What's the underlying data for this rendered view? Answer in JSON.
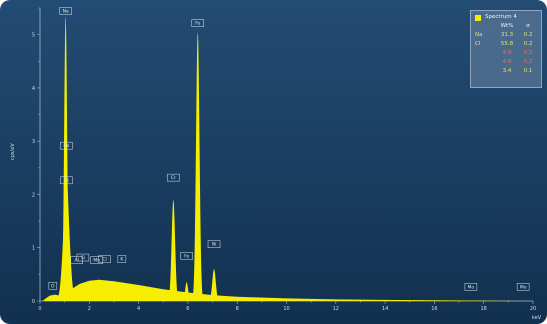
{
  "colors": {
    "background_top": "#234c74",
    "background_bottom": "#12304f",
    "spectrum_fill": "#f5ee00",
    "axis": "#9fb7cf",
    "text": "#cfdbe7",
    "label_box": "#d8e6f2",
    "legend_alt_text": "#e07070"
  },
  "chart_data": {
    "type": "area",
    "title": "",
    "xlabel": "keV",
    "ylabel": "cps/eV",
    "xlim": [
      0,
      20
    ],
    "ylim": [
      0,
      5.5
    ],
    "x_ticks": [
      "0",
      "2",
      "4",
      "6",
      "8",
      "10",
      "12",
      "14",
      "16",
      "18",
      "20"
    ],
    "y_ticks": [
      "0",
      "1",
      "2",
      "3",
      "4",
      "5"
    ],
    "x_tick_step": 1,
    "y_tick_step": 0.5,
    "legend": {
      "placement": "top-right",
      "series_name": "Spectrum 4",
      "columns": [
        "",
        "Wt%",
        "σ"
      ],
      "rows": [
        {
          "element": "Na",
          "wt": "31.3",
          "sigma": "0.2",
          "alt": false
        },
        {
          "element": "Cl",
          "wt": "55.8",
          "sigma": "0.2",
          "alt": false
        },
        {
          "element": "",
          "wt": "4.9",
          "sigma": "0.2",
          "alt": true
        },
        {
          "element": "",
          "wt": "4.6",
          "sigma": "0.2",
          "alt": true
        },
        {
          "element": "",
          "wt": "3.4",
          "sigma": "0.1",
          "alt": false
        }
      ]
    },
    "background": [
      [
        0.15,
        0.02
      ],
      [
        0.4,
        0.1
      ],
      [
        0.6,
        0.12
      ],
      [
        0.8,
        0.1
      ],
      [
        1.2,
        0.2
      ],
      [
        1.6,
        0.32
      ],
      [
        2.0,
        0.38
      ],
      [
        2.4,
        0.4
      ],
      [
        3.0,
        0.37
      ],
      [
        4.0,
        0.3
      ],
      [
        5.0,
        0.22
      ],
      [
        6.0,
        0.16
      ],
      [
        7.0,
        0.11
      ],
      [
        8.0,
        0.08
      ],
      [
        10.0,
        0.05
      ],
      [
        12.0,
        0.03
      ],
      [
        14.0,
        0.02
      ],
      [
        17.0,
        0.01
      ],
      [
        20.0,
        0.0
      ]
    ],
    "peaks": [
      {
        "label": "O",
        "energy": 0.52,
        "height": 0.1,
        "width": 0.05,
        "label_value": 0.22
      },
      {
        "label": "Na",
        "energy": 1.04,
        "height": 5.35,
        "width": 0.06,
        "label_value": 5.38
      },
      {
        "label": "Na",
        "energy": 1.07,
        "height": 2.35,
        "width": 0.11,
        "label_value": 2.85
      },
      {
        "label": "Cl",
        "energy": 1.07,
        "height": 2.0,
        "width": 0.13,
        "label_value": 2.2
      },
      {
        "label": "Al",
        "energy": 1.49,
        "height": 0.04,
        "width": 0.05,
        "label_value": 0.7
      },
      {
        "label": "Si",
        "energy": 1.74,
        "height": 0.12,
        "width": 0.06,
        "label_value": 0.75
      },
      {
        "label": "Mn",
        "energy": 2.3,
        "height": 0.12,
        "width": 0.08,
        "label_value": 0.7
      },
      {
        "label": "K",
        "energy": 3.32,
        "height": 0.05,
        "width": 0.05,
        "label_value": 0.72
      },
      {
        "label": "Cl",
        "energy": 2.62,
        "height": 0.02,
        "width": 0.05,
        "label_value": 0.72
      },
      {
        "label": "Cr",
        "energy": 5.41,
        "height": 1.9,
        "width": 0.07,
        "label_value": 2.25
      },
      {
        "label": "Fe",
        "energy": 5.95,
        "height": 0.35,
        "width": 0.06,
        "label_value": 0.78
      },
      {
        "label": "Fe",
        "energy": 6.4,
        "height": 5.05,
        "width": 0.07,
        "label_value": 5.15
      },
      {
        "label": "Ni",
        "energy": 7.06,
        "height": 0.6,
        "width": 0.07,
        "label_value": 1.0
      },
      {
        "label": "Mo",
        "energy": 17.48,
        "height": 0.0,
        "width": 0.1,
        "label_value": 0.2
      },
      {
        "label": "Mo",
        "energy": 19.6,
        "height": 0.0,
        "width": 0.1,
        "label_value": 0.2
      }
    ]
  }
}
